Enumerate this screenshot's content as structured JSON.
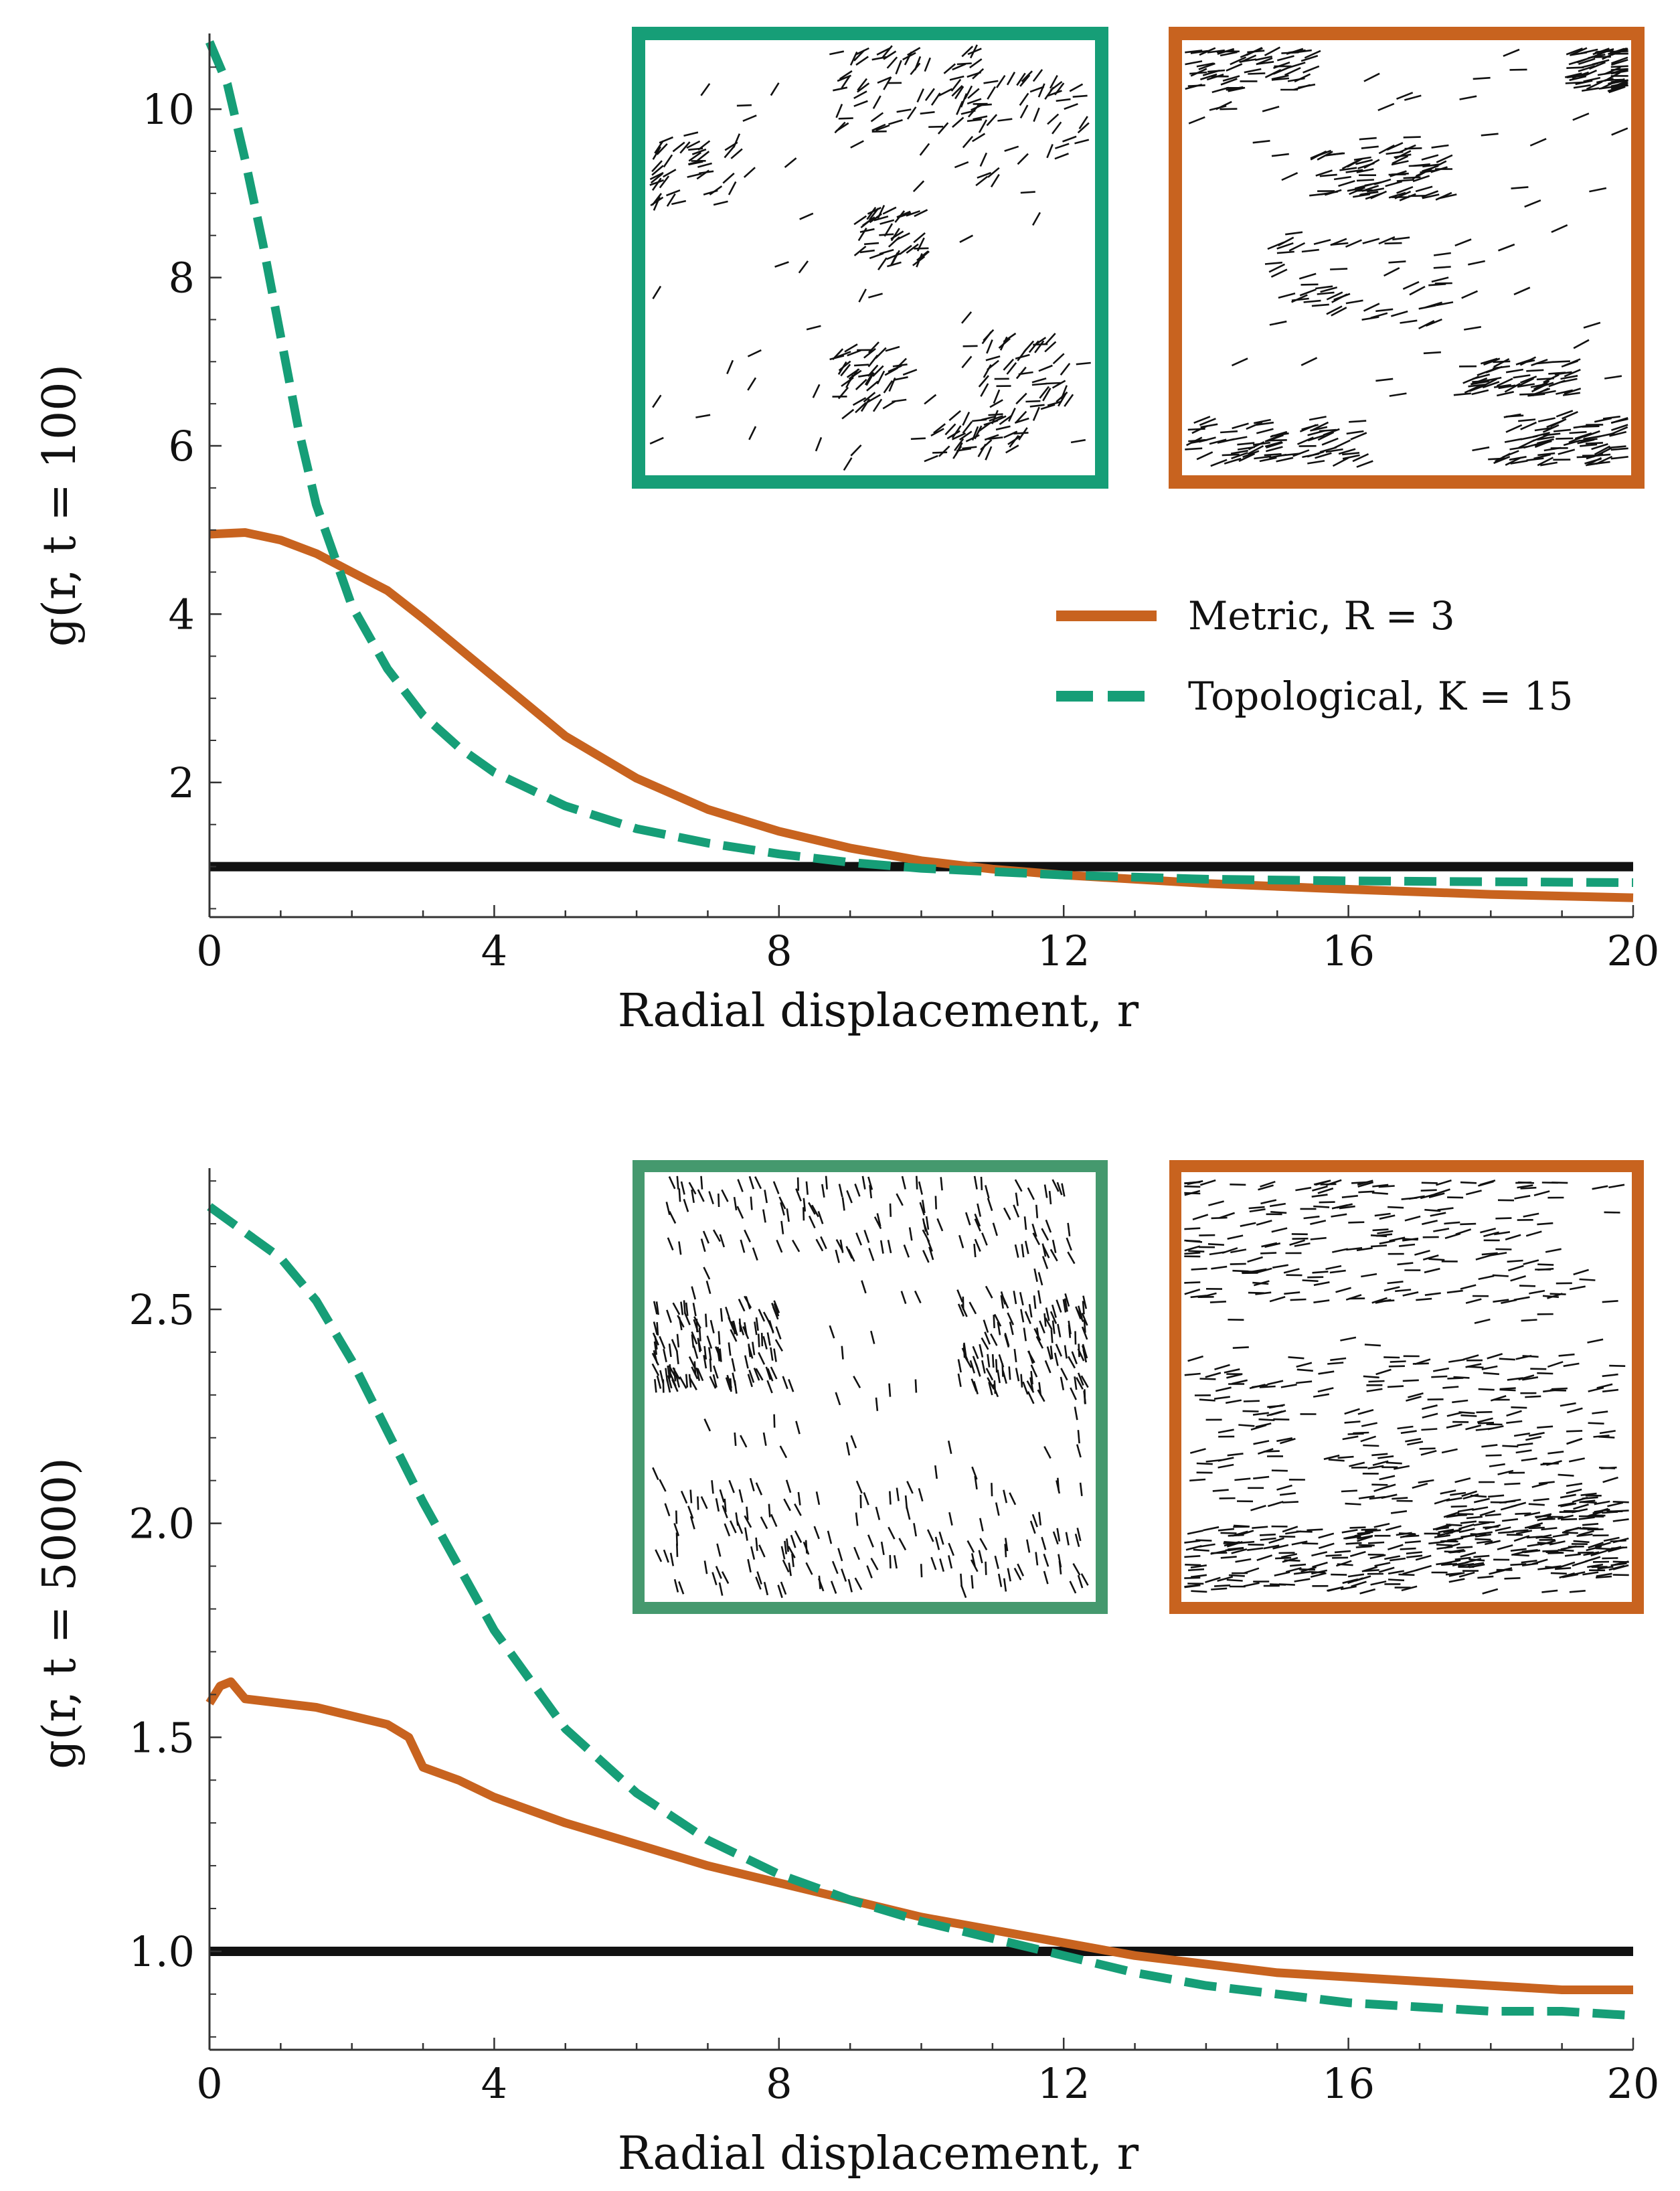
{
  "colors": {
    "metric": "#c8631f",
    "topological": "#169e77",
    "reference": "#111111",
    "inset_green_frame": "#169e77",
    "inset_orange_frame": "#c8631f"
  },
  "legend": {
    "metric_label": "Metric, R = 3",
    "topological_label": "Topological, K = 15"
  },
  "chart_data": [
    {
      "type": "line",
      "panel": "top",
      "xlabel": "Radial displacement, r",
      "ylabel": "g(r, t = 100)",
      "xlim": [
        0,
        20
      ],
      "ylim": [
        0.4,
        10.9
      ],
      "xticks": [
        0,
        4,
        8,
        12,
        16,
        20
      ],
      "yticks": [
        2,
        4,
        6,
        8,
        10
      ],
      "reference_line": 1.0,
      "legend_position": "right, below insets",
      "series": [
        {
          "name": "Metric, R = 3",
          "style": "solid",
          "x": [
            0,
            0.5,
            1,
            1.5,
            2,
            2.5,
            3,
            3.5,
            4,
            5,
            6,
            7,
            8,
            9,
            10,
            11,
            12,
            14,
            16,
            18,
            20
          ],
          "y": [
            4.95,
            4.97,
            4.88,
            4.72,
            4.5,
            4.28,
            3.95,
            3.6,
            3.25,
            2.55,
            2.05,
            1.68,
            1.42,
            1.22,
            1.07,
            0.97,
            0.9,
            0.8,
            0.73,
            0.67,
            0.63
          ]
        },
        {
          "name": "Topological, K = 15",
          "style": "dashed",
          "x": [
            0,
            0.25,
            0.5,
            0.75,
            1,
            1.25,
            1.5,
            2,
            2.5,
            3,
            3.5,
            4,
            5,
            6,
            7,
            8,
            9,
            10,
            12,
            14,
            16,
            18,
            20
          ],
          "y": [
            10.8,
            10.3,
            9.4,
            8.4,
            7.3,
            6.2,
            5.3,
            4.1,
            3.35,
            2.8,
            2.42,
            2.12,
            1.72,
            1.45,
            1.28,
            1.15,
            1.05,
            0.98,
            0.9,
            0.85,
            0.83,
            0.82,
            0.81
          ]
        }
      ]
    },
    {
      "type": "line",
      "panel": "bottom",
      "xlabel": "Radial displacement, r",
      "ylabel": "g(r, t = 5000)",
      "xlim": [
        0,
        20
      ],
      "ylim": [
        0.77,
        2.83
      ],
      "xticks": [
        0,
        4,
        8,
        12,
        16,
        20
      ],
      "yticks": [
        "1.0",
        "1.5",
        "2.0",
        "2.5"
      ],
      "reference_line": 1.0,
      "series": [
        {
          "name": "Metric, R = 3",
          "style": "solid",
          "x": [
            0,
            0.15,
            0.3,
            0.5,
            1,
            1.5,
            2,
            2.5,
            2.8,
            3,
            3.5,
            4,
            5,
            6,
            7,
            8,
            9,
            10,
            11,
            12,
            13,
            14,
            15,
            16,
            17,
            18,
            19,
            20
          ],
          "y": [
            1.58,
            1.62,
            1.63,
            1.59,
            1.58,
            1.57,
            1.55,
            1.53,
            1.5,
            1.43,
            1.4,
            1.36,
            1.3,
            1.25,
            1.2,
            1.16,
            1.12,
            1.08,
            1.05,
            1.02,
            0.99,
            0.97,
            0.95,
            0.94,
            0.93,
            0.92,
            0.91,
            0.91
          ]
        },
        {
          "name": "Topological, K = 15",
          "style": "dashed",
          "x": [
            0,
            0.5,
            1,
            1.5,
            2,
            3,
            4,
            5,
            6,
            7,
            8,
            9,
            10,
            11,
            12,
            13,
            14,
            15,
            16,
            17,
            18,
            19,
            20
          ],
          "y": [
            2.74,
            2.68,
            2.62,
            2.52,
            2.38,
            2.05,
            1.75,
            1.52,
            1.37,
            1.26,
            1.18,
            1.12,
            1.07,
            1.03,
            0.99,
            0.95,
            0.92,
            0.9,
            0.88,
            0.87,
            0.86,
            0.86,
            0.85
          ]
        }
      ]
    }
  ]
}
